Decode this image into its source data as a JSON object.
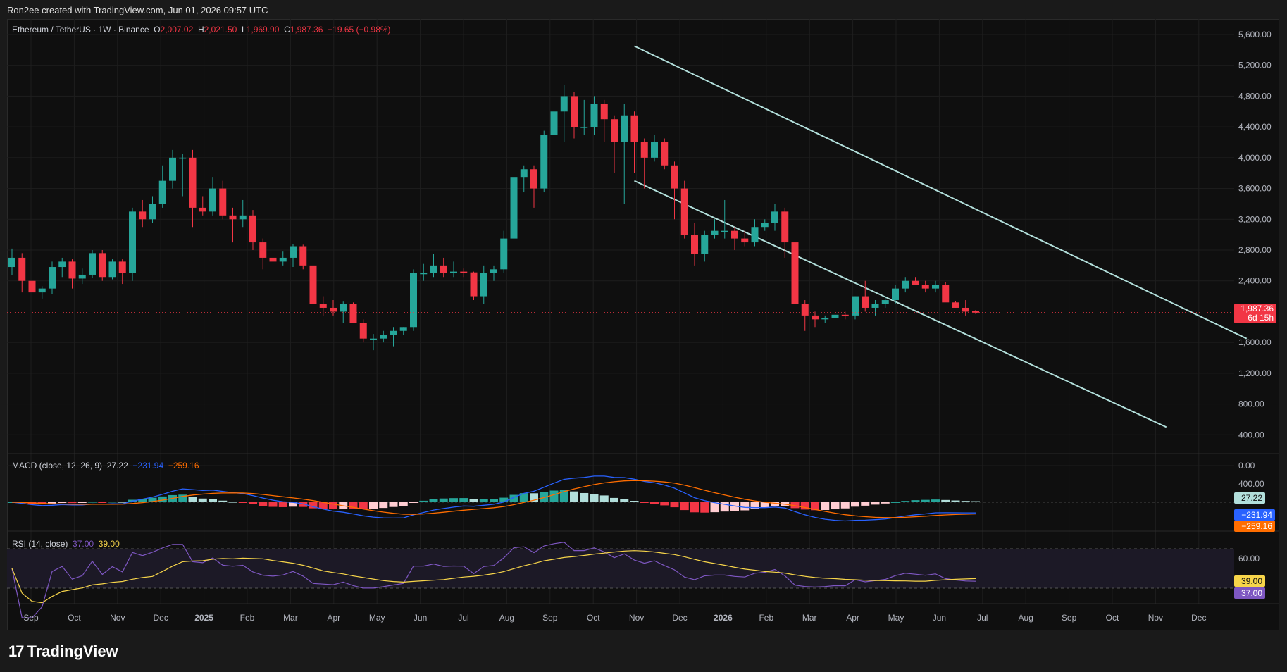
{
  "header": {
    "credit": "Ron2ee created with TradingView.com, Jun 01, 2026 09:57 UTC"
  },
  "legend": {
    "symbol": "Ethereum / TetherUS · 1W · Binance",
    "o_key": "O",
    "o_val": "2,007.02",
    "h_key": "H",
    "h_val": "2,021.50",
    "l_key": "L",
    "l_val": "1,969.90",
    "c_key": "C",
    "c_val": "1,987.36",
    "change": "−19.65 (−0.98%)"
  },
  "macd_legend": {
    "label": "MACD (close, 12, 26, 9)",
    "hist": "27.22",
    "macd": "−231.94",
    "signal": "−259.16"
  },
  "rsi_legend": {
    "label": "RSI (14, close)",
    "rsi": "37.00",
    "ma": "39.00"
  },
  "badges": {
    "price": "1,987.36",
    "countdown": "6d 15h",
    "macd_hist": "27.22",
    "macd_line": "−231.94",
    "macd_signal": "−259.16",
    "rsi_ma": "39.00",
    "rsi": "37.00"
  },
  "brand": {
    "name": "TradingView",
    "mark": "17"
  },
  "colors": {
    "up": "#26a69a",
    "down": "#f23645",
    "channel": "#b2dfdb",
    "macd": "#2962ff",
    "signal": "#ff6d00",
    "rsi": "#7e57c2",
    "rsi_ma": "#f7d54a"
  },
  "chart_data": {
    "type": "candlestick",
    "title": "Ethereum / TetherUS · 1W · Binance",
    "price_axis": {
      "ticks": [
        0,
        400,
        800,
        1200,
        1600,
        2400,
        2800,
        3200,
        3600,
        4000,
        4400,
        4800,
        5200,
        5600
      ],
      "tick_labels": [
        "0.00",
        "400.00",
        "800.00",
        "1,200.00",
        "1,600.00",
        "2,400.00",
        "2,800.00",
        "3,200.00",
        "3,600.00",
        "4,000.00",
        "4,400.00",
        "4,800.00",
        "5,200.00",
        "5,600.00"
      ],
      "range": [
        0,
        5600
      ]
    },
    "time_axis": {
      "labels": [
        "Sep",
        "Oct",
        "Nov",
        "Dec",
        "2025",
        "Feb",
        "Mar",
        "Apr",
        "May",
        "Jun",
        "Jul",
        "Aug",
        "Sep",
        "Oct",
        "Nov",
        "Dec",
        "2026",
        "Feb",
        "Mar",
        "Apr",
        "May",
        "Jun",
        "Jul",
        "Aug",
        "Sep",
        "Oct",
        "Nov",
        "Dec"
      ]
    },
    "candles_ohlc": [
      [
        2580,
        2820,
        2480,
        2700
      ],
      [
        2700,
        2760,
        2250,
        2400
      ],
      [
        2400,
        2520,
        2150,
        2250
      ],
      [
        2250,
        2330,
        2170,
        2300
      ],
      [
        2300,
        2650,
        2230,
        2580
      ],
      [
        2580,
        2700,
        2450,
        2650
      ],
      [
        2650,
        2680,
        2300,
        2430
      ],
      [
        2430,
        2560,
        2360,
        2480
      ],
      [
        2480,
        2800,
        2440,
        2760
      ],
      [
        2760,
        2800,
        2400,
        2450
      ],
      [
        2450,
        2680,
        2420,
        2650
      ],
      [
        2650,
        2680,
        2360,
        2500
      ],
      [
        2500,
        3350,
        2400,
        3300
      ],
      [
        3300,
        3450,
        3100,
        3200
      ],
      [
        3200,
        3500,
        3150,
        3400
      ],
      [
        3400,
        3900,
        3350,
        3700
      ],
      [
        3700,
        4100,
        3600,
        4000
      ],
      [
        4000,
        4050,
        3500,
        4000
      ],
      [
        4000,
        4100,
        3100,
        3350
      ],
      [
        3350,
        3500,
        3250,
        3300
      ],
      [
        3300,
        3750,
        3250,
        3600
      ],
      [
        3600,
        3700,
        3200,
        3250
      ],
      [
        3250,
        3350,
        2900,
        3200
      ],
      [
        3200,
        3450,
        3100,
        3250
      ],
      [
        3250,
        3320,
        2800,
        2900
      ],
      [
        2900,
        2950,
        2550,
        2700
      ],
      [
        2700,
        2850,
        2200,
        2650
      ],
      [
        2650,
        2780,
        2600,
        2700
      ],
      [
        2700,
        2880,
        2580,
        2850
      ],
      [
        2850,
        2870,
        2550,
        2600
      ],
      [
        2600,
        2650,
        2100,
        2100
      ],
      [
        2100,
        2200,
        1950,
        2050
      ],
      [
        2050,
        2150,
        1950,
        2000
      ],
      [
        2000,
        2130,
        1850,
        2100
      ],
      [
        2100,
        2120,
        1900,
        1850
      ],
      [
        1850,
        1900,
        1600,
        1650
      ],
      [
        1650,
        1710,
        1500,
        1650
      ],
      [
        1650,
        1750,
        1600,
        1700
      ],
      [
        1700,
        1800,
        1550,
        1750
      ],
      [
        1750,
        1800,
        1700,
        1800
      ],
      [
        1800,
        2550,
        1750,
        2500
      ],
      [
        2500,
        2620,
        2400,
        2500
      ],
      [
        2500,
        2750,
        2450,
        2600
      ],
      [
        2600,
        2700,
        2450,
        2500
      ],
      [
        2500,
        2650,
        2450,
        2520
      ],
      [
        2520,
        2560,
        2450,
        2510
      ],
      [
        2510,
        2520,
        2150,
        2200
      ],
      [
        2200,
        2600,
        2100,
        2500
      ],
      [
        2500,
        2600,
        2400,
        2550
      ],
      [
        2550,
        3050,
        2500,
        2950
      ],
      [
        2950,
        3800,
        2900,
        3750
      ],
      [
        3750,
        3900,
        3550,
        3850
      ],
      [
        3850,
        3900,
        3350,
        3600
      ],
      [
        3600,
        4350,
        3550,
        4300
      ],
      [
        4300,
        4800,
        4100,
        4600
      ],
      [
        4600,
        4950,
        4200,
        4800
      ],
      [
        4800,
        4850,
        4250,
        4400
      ],
      [
        4400,
        4750,
        4300,
        4400
      ],
      [
        4400,
        4800,
        4300,
        4700
      ],
      [
        4700,
        4750,
        4200,
        4500
      ],
      [
        4500,
        4550,
        3800,
        4200
      ],
      [
        4200,
        4700,
        3400,
        4550
      ],
      [
        4550,
        4600,
        3800,
        4200
      ],
      [
        4200,
        4250,
        3600,
        4000
      ],
      [
        4000,
        4300,
        3950,
        4200
      ],
      [
        4200,
        4250,
        3850,
        3900
      ],
      [
        3900,
        3950,
        3200,
        3600
      ],
      [
        3600,
        3700,
        2950,
        3000
      ],
      [
        3000,
        3150,
        2600,
        2750
      ],
      [
        2750,
        3050,
        2650,
        3000
      ],
      [
        3000,
        3200,
        2950,
        3050
      ],
      [
        3050,
        3450,
        2950,
        3050
      ],
      [
        3050,
        3100,
        2800,
        2950
      ],
      [
        2950,
        3050,
        2850,
        2900
      ],
      [
        2900,
        3200,
        2850,
        3100
      ],
      [
        3100,
        3200,
        3050,
        3150
      ],
      [
        3150,
        3400,
        3050,
        3300
      ],
      [
        3300,
        3350,
        2700,
        2900
      ],
      [
        2900,
        3000,
        2000,
        2100
      ],
      [
        2100,
        2150,
        1750,
        1950
      ],
      [
        1950,
        2000,
        1800,
        1900
      ],
      [
        1900,
        1950,
        1850,
        1920
      ],
      [
        1920,
        2100,
        1800,
        1960
      ],
      [
        1960,
        2000,
        1900,
        1950
      ],
      [
        1950,
        2200,
        1900,
        2200
      ],
      [
        2200,
        2400,
        2000,
        2050
      ],
      [
        2050,
        2150,
        1950,
        2100
      ],
      [
        2100,
        2200,
        2050,
        2150
      ],
      [
        2150,
        2350,
        2100,
        2300
      ],
      [
        2300,
        2450,
        2250,
        2400
      ],
      [
        2400,
        2450,
        2350,
        2350
      ],
      [
        2350,
        2400,
        2250,
        2300
      ],
      [
        2300,
        2400,
        2250,
        2350
      ],
      [
        2350,
        2380,
        2150,
        2120
      ],
      [
        2120,
        2140,
        2050,
        2050
      ],
      [
        2050,
        2150,
        1950,
        2000
      ],
      [
        2007.02,
        2021.5,
        1969.9,
        1987.36
      ]
    ],
    "last_price": 1987.36,
    "descending_channel": {
      "upper": [
        [
          62,
          5450
        ],
        [
          123,
          1650
        ]
      ],
      "lower": [
        [
          62,
          3700
        ],
        [
          115,
          500
        ]
      ],
      "note": "endpoints as [candle_index, price]"
    },
    "macd": {
      "params": "close, 12, 26, 9",
      "histogram_last": 27.22,
      "macd_last": -231.94,
      "signal_last": -259.16,
      "axis_ticks": [
        400
      ],
      "axis_tick_labels": [
        "400.00"
      ]
    },
    "rsi": {
      "params": "14, close",
      "rsi_last": 37.0,
      "ma_last": 39.0,
      "axis_ticks": [
        60
      ],
      "axis_tick_labels": [
        "60.00"
      ],
      "bands": [
        70,
        30
      ]
    }
  }
}
